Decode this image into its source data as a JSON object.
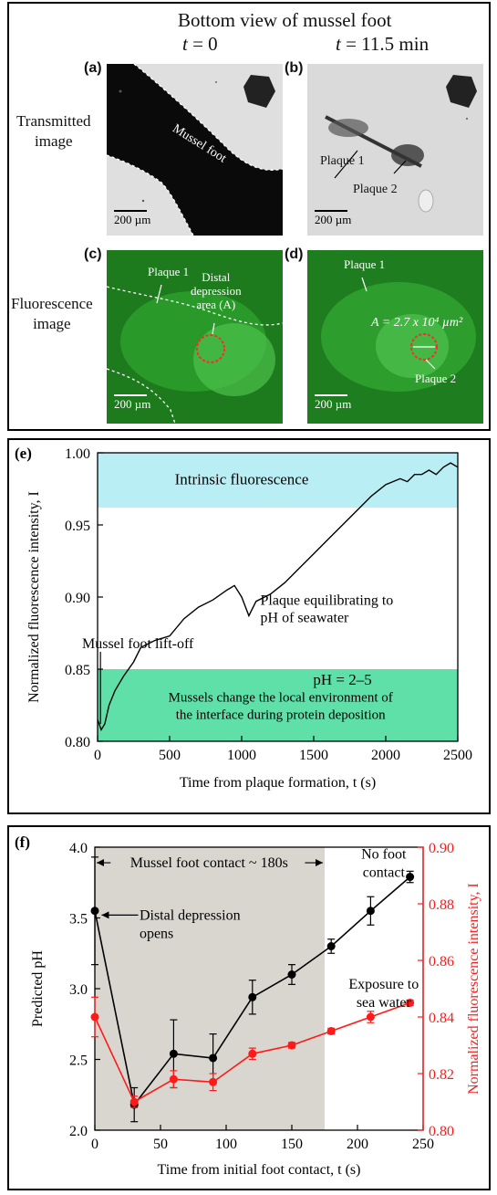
{
  "figure_top": {
    "title": "Bottom view of mussel foot",
    "col_t0": "t",
    "col_t0_val": "= 0",
    "col_t1": "t",
    "col_t1_val": "= 11.5 min",
    "row_transmitted": "Transmitted\nimage",
    "row_fluorescence": "Fluorescence\nimage",
    "label_a": "(a)",
    "label_b": "(b)",
    "label_c": "(c)",
    "label_d": "(d)",
    "mussel_foot_text": "Mussel foot",
    "plaque1": "Plaque 1",
    "plaque2": "Plaque 2",
    "plaque1_c": "Plaque 1",
    "distal_text": "Distal\ndepression\narea (A)",
    "plaque1_d": "Plaque 1",
    "plaque2_d": "Plaque 2",
    "area_text": "A = 2.7 x 10⁴ µm²",
    "scalebar": "200 µm"
  },
  "chart_data": [
    {
      "type": "line",
      "panel_label": "(e)",
      "xlabel": "Time from plaque formation, t (s)",
      "ylabel": "Normalized fluorescence intensity, I",
      "xlim": [
        0,
        2500
      ],
      "ylim": [
        0.8,
        1.0
      ],
      "xticks": [
        "0",
        "500",
        "1000",
        "1500",
        "2000",
        "2500"
      ],
      "yticks": [
        "0.80",
        "0.85",
        "0.90",
        "0.95",
        "1.00"
      ],
      "bands": [
        {
          "label": "Intrinsic fluorescence",
          "y0": 0.962,
          "y1": 1.0,
          "color": "#b8eef4"
        },
        {
          "label": "pH = 2–5",
          "sublabel": "Mussels change the local environment of\nthe interface during protein deposition",
          "y0": 0.8,
          "y1": 0.85,
          "color": "#5fe0a8"
        }
      ],
      "annotations": [
        "Mussel foot lift-off",
        "Plaque equilibrating to\npH of seawater"
      ],
      "x": [
        0,
        25,
        50,
        80,
        120,
        180,
        250,
        300,
        400,
        500,
        600,
        700,
        800,
        900,
        950,
        1000,
        1050,
        1100,
        1200,
        1300,
        1400,
        1500,
        1600,
        1700,
        1800,
        1900,
        2000,
        2050,
        2100,
        2150,
        2200,
        2250,
        2300,
        2350,
        2400,
        2450,
        2500
      ],
      "y": [
        0.815,
        0.808,
        0.812,
        0.825,
        0.835,
        0.845,
        0.855,
        0.865,
        0.87,
        0.873,
        0.885,
        0.893,
        0.898,
        0.905,
        0.908,
        0.9,
        0.887,
        0.897,
        0.902,
        0.91,
        0.92,
        0.93,
        0.94,
        0.95,
        0.96,
        0.97,
        0.978,
        0.98,
        0.982,
        0.98,
        0.985,
        0.985,
        0.988,
        0.985,
        0.99,
        0.993,
        0.99
      ],
      "color": "#000000"
    },
    {
      "type": "line",
      "panel_label": "(f)",
      "xlabel": "Time from initial foot contact, t (s)",
      "ylabel": "Predicted pH",
      "ylabel_right": "Normalized fluorescence intensity, I",
      "xlim": [
        0,
        250
      ],
      "ylim": [
        2.0,
        4.0
      ],
      "ylim_right": [
        0.8,
        0.9
      ],
      "xticks": [
        "0",
        "50",
        "100",
        "150",
        "200",
        "250"
      ],
      "yticks": [
        "2.0",
        "2.5",
        "3.0",
        "3.5",
        "4.0"
      ],
      "yticks_right": [
        "0.80",
        "0.82",
        "0.84",
        "0.86",
        "0.88",
        "0.90"
      ],
      "shaded_region": {
        "x0": 0,
        "x1": 175,
        "color": "#d9d6cf"
      },
      "annotations": [
        "Mussel foot contact ~ 180s",
        "Distal depression\nopens",
        "No foot\ncontact",
        "Exposure to\nsea water"
      ],
      "series": [
        {
          "name": "Predicted pH",
          "axis": "left",
          "color": "#000000",
          "x": [
            0,
            30,
            60,
            90,
            120,
            150,
            180,
            210,
            240
          ],
          "y": [
            3.55,
            2.18,
            2.54,
            2.51,
            2.94,
            3.1,
            3.3,
            3.55,
            3.79
          ],
          "err": [
            0.38,
            0.12,
            0.24,
            0.17,
            0.12,
            0.07,
            0.05,
            0.1,
            0.04
          ]
        },
        {
          "name": "Normalized fluorescence intensity",
          "axis": "right",
          "color": "#ff1a1a",
          "x": [
            0,
            30,
            60,
            90,
            120,
            150,
            180,
            210,
            240
          ],
          "y": [
            0.84,
            0.81,
            0.818,
            0.817,
            0.827,
            0.83,
            0.835,
            0.84,
            0.845
          ],
          "err": [
            0.007,
            0.002,
            0.003,
            0.003,
            0.002,
            0.001,
            0.001,
            0.002,
            0.001
          ]
        }
      ]
    }
  ]
}
